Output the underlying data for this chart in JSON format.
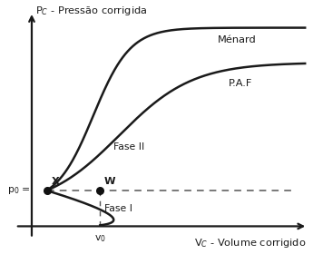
{
  "ylabel": "P$_C$ - Pressão corrigida",
  "xlabel": "V$_C$ - Volume corrigido",
  "label_menard": "Ménard",
  "label_paf": "P.A.F",
  "label_faseI": "Fase I",
  "label_faseII": "Fase II",
  "label_p0": "p$_0$ =",
  "label_X": "X",
  "label_W": "W",
  "label_v0": "v$_0$",
  "bg_color": "#ffffff",
  "line_color": "#1a1a1a",
  "dashed_color": "#555555",
  "dot_color": "#111111",
  "x_min": 0.0,
  "x_max": 10.0,
  "y_min": 0.0,
  "y_max": 10.0,
  "x_x": 0.55,
  "x_w": 2.5,
  "p0_y": 1.8,
  "xlim_left": -0.9,
  "xlim_right": 10.2,
  "ylim_bottom": -1.0,
  "ylim_top": 11.0
}
